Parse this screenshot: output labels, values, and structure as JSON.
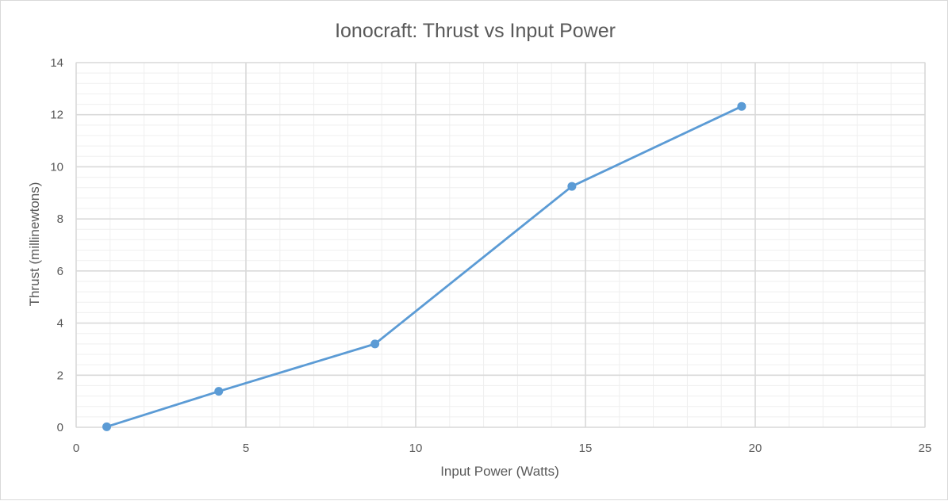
{
  "colors": {
    "series": "#5b9bd5",
    "text": "#595959",
    "grid_major": "#d9d9d9",
    "grid_minor": "#efefef"
  },
  "chart_data": {
    "type": "scatter",
    "mode": "lines+markers",
    "title": "Ionocraft: Thrust vs Input Power",
    "xlabel": "Input Power (Watts)",
    "ylabel": "Thrust (millinewtons)",
    "xlim": [
      0,
      25
    ],
    "ylim": [
      0,
      14
    ],
    "x_ticks": [
      0,
      5,
      10,
      15,
      20,
      25
    ],
    "y_ticks": [
      0,
      2,
      4,
      6,
      8,
      10,
      12,
      14
    ],
    "x_tick_labels": [
      "0",
      "5",
      "10",
      "15",
      "20",
      "25"
    ],
    "y_tick_labels": [
      "0",
      "2",
      "4",
      "6",
      "8",
      "10",
      "12",
      "14"
    ],
    "grid": {
      "major": true,
      "minor": true
    },
    "legend": "none",
    "series": [
      {
        "x": [
          0.9,
          4.2,
          8.8,
          14.6,
          19.6
        ],
        "y": [
          0.02,
          1.38,
          3.2,
          9.25,
          12.32
        ]
      }
    ]
  }
}
